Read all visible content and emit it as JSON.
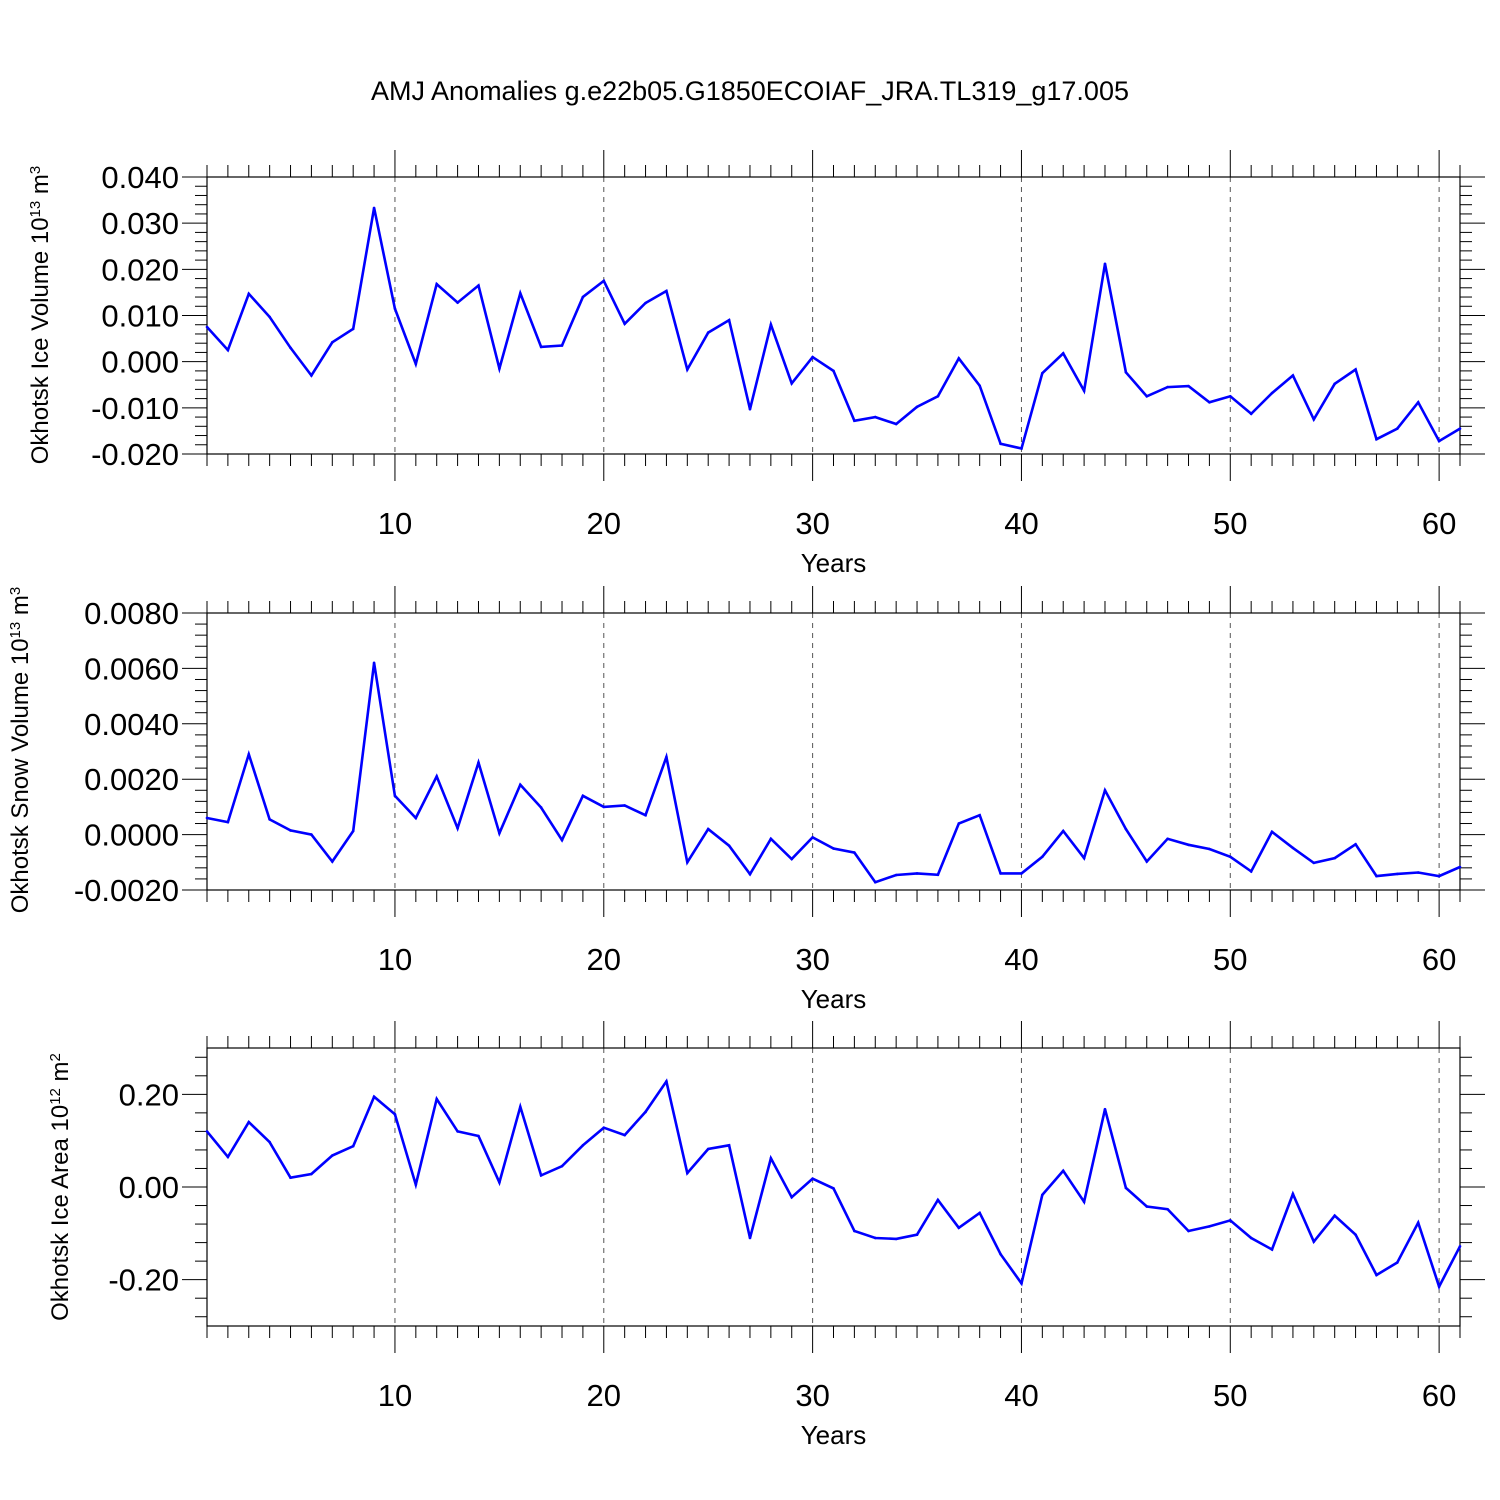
{
  "title": "AMJ Anomalies g.e22b05.G1850ECOIAF_JRA.TL319_g17.005",
  "colors": {
    "line": "#0000ff",
    "axis": "#000000",
    "grid": "#555555"
  },
  "chart_data": [
    {
      "type": "line",
      "ylabel_main": "Okhotsk Ice Volume 10",
      "ylabel_exp": "13",
      "ylabel_unit": " m",
      "ylabel_unit_exp": "3",
      "xlabel": "Years",
      "xlim": [
        1,
        61
      ],
      "ylim": [
        -0.02,
        0.04
      ],
      "yticks": [
        -0.02,
        -0.01,
        0.0,
        0.01,
        0.02,
        0.03,
        0.04
      ],
      "ytick_labels": [
        "-0.020",
        "-0.010",
        "0.000",
        "0.010",
        "0.020",
        "0.030",
        "0.040"
      ],
      "xticks": [
        10,
        20,
        30,
        40,
        50,
        60
      ],
      "xtick_labels": [
        "10",
        "20",
        "30",
        "40",
        "50",
        "60"
      ],
      "grid": "vertical dashed at major x ticks",
      "series": [
        {
          "x": [
            1,
            2,
            3,
            4,
            5,
            6,
            7,
            8,
            9,
            10,
            11,
            12,
            13,
            14,
            15,
            16,
            17,
            18,
            19,
            20,
            21,
            22,
            23,
            24,
            25,
            26,
            27,
            28,
            29,
            30,
            31,
            32,
            33,
            34,
            35,
            36,
            37,
            38,
            39,
            40,
            41,
            42,
            43,
            44,
            45,
            46,
            47,
            48,
            49,
            50,
            51,
            52,
            53,
            54,
            55,
            56,
            57,
            58,
            59,
            60,
            61
          ],
          "values": [
            0.0075,
            0.0025,
            0.0147,
            0.0097,
            0.003,
            -0.003,
            0.0042,
            0.0071,
            0.0333,
            0.0115,
            -0.0005,
            0.0168,
            0.0128,
            0.0165,
            -0.0015,
            0.0148,
            0.0032,
            0.0035,
            0.014,
            0.0175,
            0.0082,
            0.0127,
            0.0153,
            -0.0017,
            0.0063,
            0.009,
            -0.0103,
            0.008,
            -0.0047,
            0.001,
            -0.002,
            -0.0128,
            -0.012,
            -0.0135,
            -0.0098,
            -0.0075,
            0.0007,
            -0.0052,
            -0.0178,
            -0.0188,
            -0.0025,
            0.0018,
            -0.0063,
            0.0212,
            -0.0023,
            -0.0075,
            -0.0055,
            -0.0053,
            -0.0088,
            -0.0075,
            -0.0113,
            -0.0068,
            -0.003,
            -0.0125,
            -0.0048,
            -0.0017,
            -0.0168,
            -0.0145,
            -0.0088,
            -0.0172,
            -0.0145
          ]
        }
      ]
    },
    {
      "type": "line",
      "ylabel_main": "Okhotsk Snow Volume 10",
      "ylabel_exp": "13",
      "ylabel_unit": " m",
      "ylabel_unit_exp": "3",
      "xlabel": "Years",
      "xlim": [
        1,
        61
      ],
      "ylim": [
        -0.002,
        0.008
      ],
      "yticks": [
        -0.002,
        0.0,
        0.002,
        0.004,
        0.006,
        0.008
      ],
      "ytick_labels": [
        "-0.0020",
        "0.0000",
        "0.0020",
        "0.0040",
        "0.0060",
        "0.0080"
      ],
      "xticks": [
        10,
        20,
        30,
        40,
        50,
        60
      ],
      "xtick_labels": [
        "10",
        "20",
        "30",
        "40",
        "50",
        "60"
      ],
      "grid": "vertical dashed at major x ticks",
      "series": [
        {
          "x": [
            1,
            2,
            3,
            4,
            5,
            6,
            7,
            8,
            9,
            10,
            11,
            12,
            13,
            14,
            15,
            16,
            17,
            18,
            19,
            20,
            21,
            22,
            23,
            24,
            25,
            26,
            27,
            28,
            29,
            30,
            31,
            32,
            33,
            34,
            35,
            36,
            37,
            38,
            39,
            40,
            41,
            42,
            43,
            44,
            45,
            46,
            47,
            48,
            49,
            50,
            51,
            52,
            53,
            54,
            55,
            56,
            57,
            58,
            59,
            60,
            61
          ],
          "values": [
            0.0006,
            0.00045,
            0.0029,
            0.00055,
            0.00015,
            0.0,
            -0.00097,
            0.00013,
            0.0062,
            0.0014,
            0.0006,
            0.0021,
            0.00023,
            0.0026,
            5e-05,
            0.0018,
            0.00098,
            -0.0002,
            0.0014,
            0.001,
            0.00105,
            0.0007,
            0.0028,
            -0.001,
            0.0002,
            -0.0004,
            -0.00143,
            -0.00015,
            -0.00088,
            -0.0001,
            -0.0005,
            -0.00065,
            -0.00172,
            -0.00146,
            -0.0014,
            -0.00145,
            0.0004,
            0.0007,
            -0.0014,
            -0.0014,
            -0.0008,
            0.00013,
            -0.00085,
            0.0016,
            0.0002,
            -0.00097,
            -0.00015,
            -0.00037,
            -0.00052,
            -0.0008,
            -0.00133,
            0.0001,
            -0.00048,
            -0.00102,
            -0.00085,
            -0.00035,
            -0.0015,
            -0.00142,
            -0.00137,
            -0.0015,
            -0.00117
          ]
        }
      ]
    },
    {
      "type": "line",
      "ylabel_main": "Okhotsk Ice Area 10",
      "ylabel_exp": "12",
      "ylabel_unit": " m",
      "ylabel_unit_exp": "2",
      "xlabel": "Years",
      "xlim": [
        1,
        61
      ],
      "ylim": [
        -0.3,
        0.3
      ],
      "yticks": [
        -0.2,
        0.0,
        0.2
      ],
      "ytick_labels": [
        "-0.20",
        "0.00",
        "0.20"
      ],
      "xticks": [
        10,
        20,
        30,
        40,
        50,
        60
      ],
      "xtick_labels": [
        "10",
        "20",
        "30",
        "40",
        "50",
        "60"
      ],
      "grid": "vertical dashed at major x ticks",
      "series": [
        {
          "x": [
            1,
            2,
            3,
            4,
            5,
            6,
            7,
            8,
            9,
            10,
            11,
            12,
            13,
            14,
            15,
            16,
            17,
            18,
            19,
            20,
            21,
            22,
            23,
            24,
            25,
            26,
            27,
            28,
            29,
            30,
            31,
            32,
            33,
            34,
            35,
            36,
            37,
            38,
            39,
            40,
            41,
            42,
            43,
            44,
            45,
            46,
            47,
            48,
            49,
            50,
            51,
            52,
            53,
            54,
            55,
            56,
            57,
            58,
            59,
            60,
            61
          ],
          "values": [
            0.12,
            0.065,
            0.14,
            0.097,
            0.02,
            0.028,
            0.068,
            0.088,
            0.195,
            0.157,
            0.005,
            0.19,
            0.12,
            0.11,
            0.01,
            0.173,
            0.025,
            0.045,
            0.09,
            0.128,
            0.112,
            0.162,
            0.228,
            0.03,
            0.082,
            0.09,
            -0.11,
            0.062,
            -0.022,
            0.018,
            -0.003,
            -0.095,
            -0.11,
            -0.112,
            -0.103,
            -0.028,
            -0.088,
            -0.056,
            -0.145,
            -0.208,
            -0.017,
            0.035,
            -0.032,
            0.168,
            -0.002,
            -0.042,
            -0.048,
            -0.095,
            -0.085,
            -0.072,
            -0.11,
            -0.135,
            -0.015,
            -0.118,
            -0.062,
            -0.103,
            -0.19,
            -0.163,
            -0.077,
            -0.215,
            -0.128
          ]
        }
      ]
    }
  ]
}
